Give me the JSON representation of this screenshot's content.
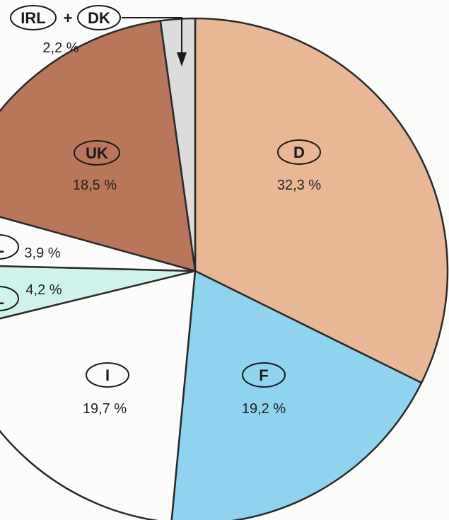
{
  "chart_data": {
    "type": "pie",
    "title": "",
    "slices": [
      {
        "code": "D",
        "label": "32,3 %",
        "value": 32.3,
        "color": "#e8b896"
      },
      {
        "code": "F",
        "label": "19,2 %",
        "value": 19.2,
        "color": "#8fd3ee"
      },
      {
        "code": "I",
        "label": "19,7 %",
        "value": 19.7,
        "color": "#fcfcfa"
      },
      {
        "code": "NL",
        "label": "4,2 %",
        "value": 4.2,
        "color": "#cff3ea"
      },
      {
        "code": "BL",
        "label": "3,9 %",
        "value": 3.9,
        "color": "#fbfbf9"
      },
      {
        "code": "UK",
        "label": "18,5 %",
        "value": 18.5,
        "color": "#b8775a"
      },
      {
        "code": "IRL + DK",
        "label": "2,2 %",
        "value": 2.2,
        "color": "#dcdcdc"
      }
    ],
    "callout": {
      "code_a": "IRL",
      "plus": "+",
      "code_b": "DK",
      "label": "2,2 %"
    }
  }
}
